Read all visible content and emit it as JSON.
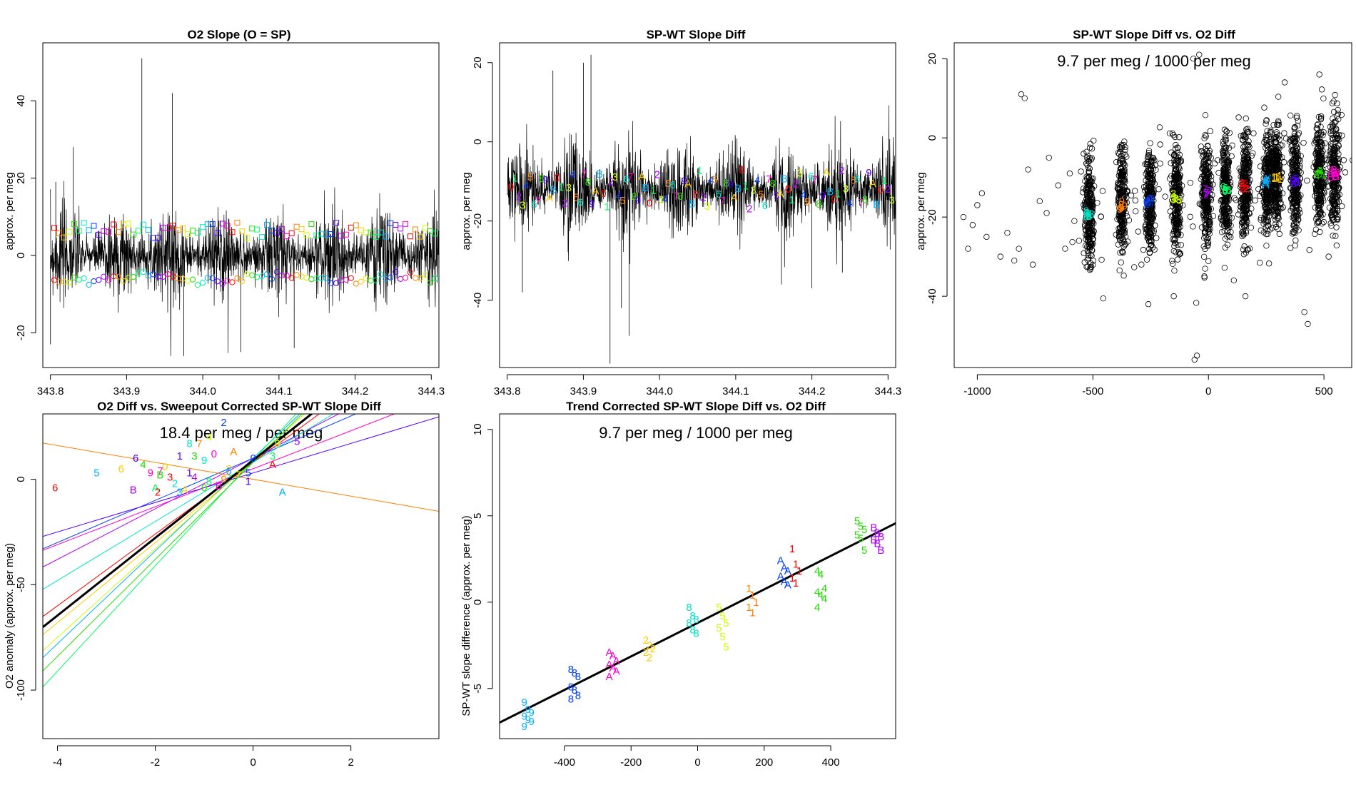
{
  "figure": {
    "colors": {
      "palette": [
        "#ff0000",
        "#ff8000",
        "#ffcc00",
        "#ccff00",
        "#22dd00",
        "#00ff66",
        "#00e5c8",
        "#00b0ff",
        "#0040ff",
        "#5500ff",
        "#b000ff",
        "#ff00cc"
      ],
      "data": "#000000"
    }
  },
  "chart_data": [
    {
      "id": "p1",
      "type": "line",
      "title": "O2 Slope (O = SP)",
      "xlabel": "",
      "ylabel": "approx. per meg",
      "xlim": [
        343.79,
        344.31
      ],
      "ylim": [
        -29,
        55
      ],
      "xticks": [
        "343.8",
        "343.9",
        "344.0",
        "344.1",
        "344.2",
        "344.3"
      ],
      "xtick_values": [
        343.8,
        343.9,
        344.0,
        344.1,
        344.2,
        344.3
      ],
      "yticks": [
        "-20",
        "0",
        "20",
        "40"
      ],
      "ytick_values": [
        -20,
        0,
        20,
        40
      ],
      "series": [
        {
          "name": "O2 slope trace",
          "color": "#000000",
          "range": [
            343.8,
            344.31
          ],
          "mean": 0,
          "sd": 5.5,
          "min": -26,
          "max": 20
        },
        {
          "name": "upper square markers",
          "marker": "square",
          "level": 6.5,
          "spread": 2
        },
        {
          "name": "lower circle markers",
          "marker": "circle",
          "level": -6,
          "spread": 1
        }
      ],
      "spikes": [
        [
          343.807,
          19
        ],
        [
          343.8,
          -23
        ],
        [
          343.83,
          28
        ],
        [
          343.92,
          51
        ],
        [
          343.96,
          42
        ],
        [
          343.975,
          -26
        ],
        [
          344.05,
          -25
        ],
        [
          344.12,
          -24
        ]
      ]
    },
    {
      "id": "p2",
      "type": "line",
      "title": "SP-WT Slope Diff",
      "xlabel": "",
      "ylabel": "approx. per meg",
      "xlim": [
        343.79,
        344.31
      ],
      "ylim": [
        -57,
        25
      ],
      "xticks": [
        "343.8",
        "343.9",
        "344.0",
        "344.1",
        "344.2",
        "344.3"
      ],
      "xtick_values": [
        343.8,
        343.9,
        344.0,
        344.1,
        344.2,
        344.3
      ],
      "yticks": [
        "-40",
        "-20",
        "0",
        "20"
      ],
      "ytick_values": [
        -40,
        -20,
        0,
        20
      ],
      "series": [
        {
          "name": "SP-WT slope diff trace",
          "color": "#000000",
          "range": [
            343.8,
            344.31
          ],
          "mean": -12,
          "sd": 5.5,
          "min": -33,
          "max": 12
        },
        {
          "name": "labelled cycle means",
          "marker": "text",
          "labels": [
            "0",
            "1",
            "2",
            "3",
            "4",
            "5",
            "6",
            "7",
            "8",
            "9",
            "A",
            "B"
          ],
          "level": -12,
          "spread": 7
        }
      ],
      "spikes": [
        [
          343.86,
          18
        ],
        [
          343.9,
          20
        ],
        [
          343.91,
          22
        ],
        [
          343.935,
          -56
        ],
        [
          343.96,
          -49
        ],
        [
          343.95,
          -42
        ],
        [
          343.82,
          -38
        ],
        [
          344.2,
          -37
        ],
        [
          344.24,
          -33
        ],
        [
          344.16,
          -36
        ]
      ]
    },
    {
      "id": "p3",
      "type": "scatter",
      "title": "SP-WT Slope Diff vs. O2 Diff",
      "annotation": "9.7 per meg / 1000 per meg",
      "xlabel": "",
      "ylabel": "approx. per meg",
      "xlim": [
        -1100,
        620
      ],
      "ylim": [
        -58,
        24
      ],
      "xticks": [
        "-1000",
        "-500",
        "0",
        "500"
      ],
      "xtick_values": [
        -1000,
        -500,
        0,
        500
      ],
      "yticks": [
        "-40",
        "-20",
        "0",
        "20"
      ],
      "ytick_values": [
        -40,
        -20,
        0,
        20
      ],
      "groups": [
        {
          "x": -515,
          "label": "8",
          "mean": -19
        },
        {
          "x": -375,
          "label": "9",
          "mean": -17
        },
        {
          "x": -255,
          "label": "0",
          "mean": -16
        },
        {
          "x": -140,
          "label": "3",
          "mean": -15
        },
        {
          "x": -10,
          "label": "7",
          "mean": -13.5
        },
        {
          "x": 75,
          "label": "6",
          "mean": -13
        },
        {
          "x": 160,
          "label": "2",
          "mean": -12
        },
        {
          "x": 255,
          "label": "A",
          "mean": -11
        },
        {
          "x": 295,
          "label": "1",
          "mean": -10
        },
        {
          "x": 375,
          "label": "5",
          "mean": -11
        },
        {
          "x": 480,
          "label": "4",
          "mean": -9
        },
        {
          "x": 545,
          "label": "B",
          "mean": -9
        }
      ],
      "outliers": [
        [
          -810,
          11
        ],
        [
          -795,
          10
        ],
        [
          -1060,
          -20
        ],
        [
          -1040,
          -28
        ],
        [
          -1020,
          -22
        ],
        [
          -1000,
          -17
        ],
        [
          -980,
          -14
        ],
        [
          -960,
          -25
        ],
        [
          -900,
          -30
        ],
        [
          -870,
          -24
        ],
        [
          -840,
          -31
        ],
        [
          -820,
          -28
        ],
        [
          -780,
          -8
        ],
        [
          -760,
          -32
        ],
        [
          -730,
          -16
        ],
        [
          -700,
          -19
        ],
        [
          -690,
          -5
        ],
        [
          -650,
          -12
        ],
        [
          -620,
          -28
        ],
        [
          -600,
          -9
        ],
        [
          -580,
          -21
        ],
        [
          -560,
          -26
        ],
        [
          -540,
          -4
        ],
        [
          -260,
          -42
        ],
        [
          -290,
          -32
        ],
        [
          110,
          -36
        ],
        [
          160,
          -40
        ],
        [
          430,
          -47
        ],
        [
          415,
          -44
        ],
        [
          -60,
          -56
        ],
        [
          -50,
          -55
        ],
        [
          330,
          14
        ],
        [
          480,
          16
        ],
        [
          -40,
          21
        ],
        [
          -65,
          20
        ],
        [
          -150,
          -40
        ],
        [
          520,
          -30
        ]
      ]
    },
    {
      "id": "p4",
      "type": "scatter",
      "title": "O2 Diff vs. Sweepout Corrected SP-WT Slope Diff",
      "annotation": "18.4 per meg / per meg",
      "xlabel": "",
      "ylabel": "O2 anomaly (approx. per meg)",
      "xlim": [
        -4.3,
        3.8
      ],
      "ylim": [
        -123,
        31
      ],
      "xticks": [
        "-4",
        "-2",
        "0",
        "2"
      ],
      "xtick_values": [
        -4,
        -2,
        0,
        2
      ],
      "yticks": [
        "-100",
        "-50",
        "0"
      ],
      "ytick_values": [
        -100,
        -50,
        0
      ],
      "fit": {
        "slope": 18.4,
        "intercept": 9.0,
        "color": "#000000"
      },
      "group_lines": [
        {
          "label": "0",
          "slope": 19,
          "intercept": 8
        },
        {
          "label": "1",
          "slope": 22,
          "intercept": 10
        },
        {
          "label": "2",
          "slope": 17,
          "intercept": 8
        },
        {
          "label": "3",
          "slope": 25,
          "intercept": 9
        },
        {
          "label": "4",
          "slope": 12,
          "intercept": 10
        },
        {
          "label": "5",
          "slope": 21,
          "intercept": 9
        },
        {
          "label": "6",
          "slope": 10,
          "intercept": 10
        },
        {
          "label": "7",
          "slope": -4,
          "intercept": 0
        },
        {
          "label": "8",
          "slope": 14,
          "intercept": 8
        },
        {
          "label": "9",
          "slope": 9,
          "intercept": 5
        },
        {
          "label": "A",
          "slope": 23,
          "intercept": 8
        },
        {
          "label": "B",
          "slope": 7,
          "intercept": 3
        }
      ],
      "points": [
        {
          "label": "6",
          "x": -4.05,
          "y": -4
        },
        {
          "label": "5",
          "x": -3.2,
          "y": 3
        },
        {
          "label": "6",
          "x": -2.7,
          "y": 5
        },
        {
          "label": "6",
          "x": -2.4,
          "y": 10
        },
        {
          "label": "4",
          "x": -2.25,
          "y": 7
        },
        {
          "label": "7",
          "x": -1.9,
          "y": 4
        },
        {
          "label": "8",
          "x": -1.3,
          "y": 17
        },
        {
          "label": "7",
          "x": -1.1,
          "y": 17
        },
        {
          "label": "2",
          "x": -0.6,
          "y": 27
        },
        {
          "label": "4",
          "x": -0.9,
          "y": 20
        },
        {
          "label": "B",
          "x": -2.45,
          "y": -5
        },
        {
          "label": "A",
          "x": -2.0,
          "y": -4
        },
        {
          "label": "2",
          "x": -1.95,
          "y": -6
        },
        {
          "label": "3",
          "x": -1.5,
          "y": -6
        },
        {
          "label": "A",
          "x": -1.4,
          "y": -5
        },
        {
          "label": "1",
          "x": -1.5,
          "y": 11
        },
        {
          "label": "3",
          "x": -1.2,
          "y": 11
        },
        {
          "label": "0",
          "x": -0.8,
          "y": 12
        },
        {
          "label": "9",
          "x": -1.0,
          "y": 9
        },
        {
          "label": "A",
          "x": -0.4,
          "y": 13
        },
        {
          "label": "0",
          "x": 0.0,
          "y": 10
        },
        {
          "label": "9",
          "x": 0.5,
          "y": 17
        },
        {
          "label": "5",
          "x": 0.9,
          "y": 18
        },
        {
          "label": "3",
          "x": 0.4,
          "y": 11
        },
        {
          "label": "A",
          "x": 0.4,
          "y": 7
        },
        {
          "label": "A",
          "x": 0.6,
          "y": -6
        },
        {
          "label": "2",
          "x": -0.5,
          "y": 5
        },
        {
          "label": "1",
          "x": -0.1,
          "y": -1
        },
        {
          "label": "0",
          "x": -1.0,
          "y": -4
        },
        {
          "label": "B",
          "x": -0.7,
          "y": -3
        },
        {
          "label": "2",
          "x": -1.6,
          "y": -2
        },
        {
          "label": "9",
          "x": -0.6,
          "y": 0
        },
        {
          "label": "5",
          "x": -0.1,
          "y": 3
        },
        {
          "label": "7",
          "x": -0.3,
          "y": 2
        },
        {
          "label": "4",
          "x": -1.2,
          "y": 1
        },
        {
          "label": "8",
          "x": -0.9,
          "y": -1
        },
        {
          "label": "3",
          "x": -1.7,
          "y": 1
        },
        {
          "label": "6",
          "x": -0.5,
          "y": 4
        },
        {
          "label": "0",
          "x": -1.8,
          "y": 6
        },
        {
          "label": "1",
          "x": -1.3,
          "y": 3
        },
        {
          "label": "B",
          "x": -1.9,
          "y": 2
        },
        {
          "label": "9",
          "x": -2.1,
          "y": 3
        }
      ]
    },
    {
      "id": "p5",
      "type": "scatter",
      "title": "Trend Corrected SP-WT Slope Diff vs. O2 Diff",
      "annotation": "9.7 per meg / 1000 per meg",
      "xlabel": "",
      "ylabel": "SP-WT slope difference (approx. per meg)",
      "xlim": [
        -595,
        595
      ],
      "ylim": [
        -7.9,
        10.9
      ],
      "xticks": [
        "-400",
        "-200",
        "0",
        "200",
        "400"
      ],
      "xtick_values": [
        -400,
        -200,
        0,
        200,
        400
      ],
      "yticks": [
        "-5",
        "0",
        "5",
        "10"
      ],
      "ytick_values": [
        -5,
        0,
        5,
        10
      ],
      "fit": {
        "slope": 0.0097,
        "intercept": -1.2,
        "color": "#000000"
      },
      "groups": [
        {
          "x": -510,
          "label": "9",
          "values": [
            -5.8,
            -6.2,
            -6.4,
            -6.6,
            -6.8,
            -6.9,
            -7.2
          ]
        },
        {
          "x": -370,
          "label": "8",
          "values": [
            -3.9,
            -4.1,
            -4.3,
            -4.9,
            -5.1,
            -5.4,
            -5.6
          ]
        },
        {
          "x": -255,
          "label": "A",
          "values": [
            -2.9,
            -3.1,
            -3.4,
            -3.6,
            -3.8,
            -4.0,
            -4.3
          ]
        },
        {
          "x": -145,
          "label": "2",
          "values": [
            -2.2,
            -2.5,
            -2.7,
            -2.9,
            -3.2
          ]
        },
        {
          "x": -15,
          "label": "8",
          "values": [
            -0.3,
            -0.8,
            -1.0,
            -1.2,
            -1.6,
            -1.8
          ]
        },
        {
          "x": 75,
          "label": "5",
          "values": [
            -0.3,
            -0.8,
            -1.2,
            -1.5,
            -2.0,
            -2.6
          ]
        },
        {
          "x": 165,
          "label": "1",
          "values": [
            0.8,
            0.4,
            0.0,
            -0.3,
            -0.6
          ]
        },
        {
          "x": 260,
          "label": "A",
          "values": [
            2.4,
            2.0,
            1.8,
            1.5,
            1.2,
            1.0
          ]
        },
        {
          "x": 295,
          "label": "1",
          "values": [
            3.1,
            2.2,
            1.8,
            1.4,
            1.1
          ]
        },
        {
          "x": 370,
          "label": "4",
          "values": [
            1.8,
            1.6,
            0.8,
            0.6,
            0.4,
            0.2,
            -0.3
          ]
        },
        {
          "x": 490,
          "label": "5",
          "values": [
            4.7,
            4.4,
            4.2,
            3.9,
            3.7,
            3.0
          ]
        },
        {
          "x": 540,
          "label": "B",
          "values": [
            4.3,
            4.0,
            3.8,
            3.6,
            3.4,
            3.0
          ]
        }
      ]
    }
  ]
}
